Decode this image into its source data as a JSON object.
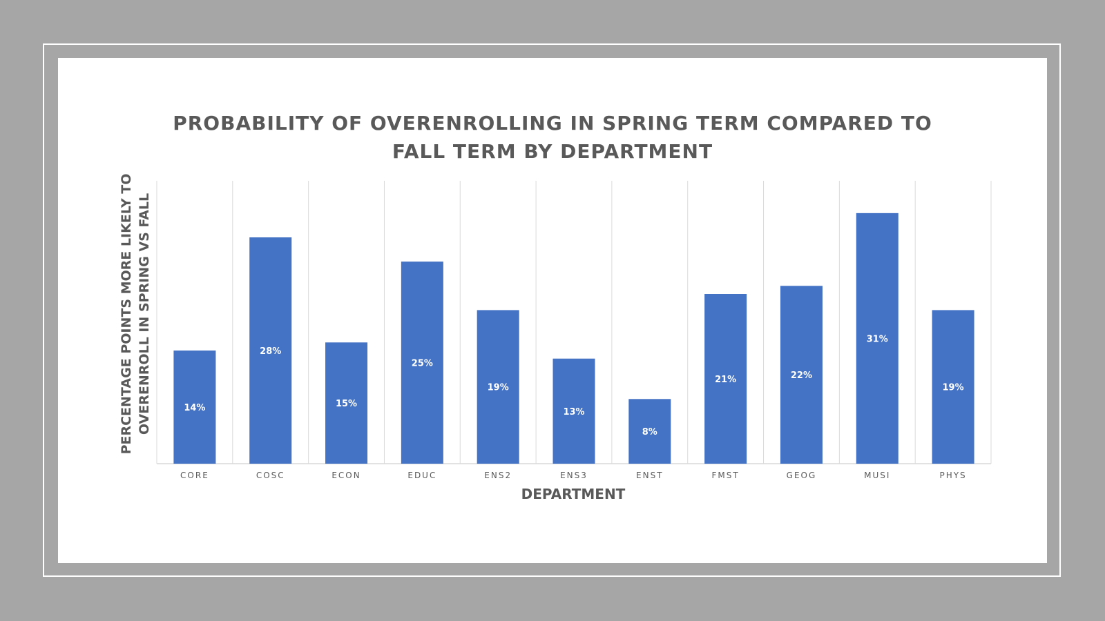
{
  "chart_data": {
    "type": "bar",
    "title_lines": [
      "PROBABILITY OF OVERENROLLING IN SPRING TERM COMPARED TO",
      "FALL TERM BY DEPARTMENT"
    ],
    "xlabel": "DEPARTMENT",
    "ylabel_lines": [
      "PERCENTAGE POINTS MORE LIKELY TO",
      "OVERENROLL IN SPRING VS FALL"
    ],
    "categories": [
      "CORE",
      "COSC",
      "ECON",
      "EDUC",
      "ENS2",
      "ENS3",
      "ENST",
      "FMST",
      "GEOG",
      "MUSI",
      "PHYS"
    ],
    "values": [
      14,
      28,
      15,
      25,
      19,
      13,
      8,
      21,
      22,
      31,
      19
    ],
    "data_labels": [
      "14%",
      "28%",
      "15%",
      "25%",
      "19%",
      "13%",
      "8%",
      "21%",
      "22%",
      "31%",
      "19%"
    ],
    "ylim": [
      0,
      35
    ],
    "grid": "vertical",
    "legend": "none",
    "bar_color": "#4472c4",
    "frame_color": "#a6a6a6"
  }
}
